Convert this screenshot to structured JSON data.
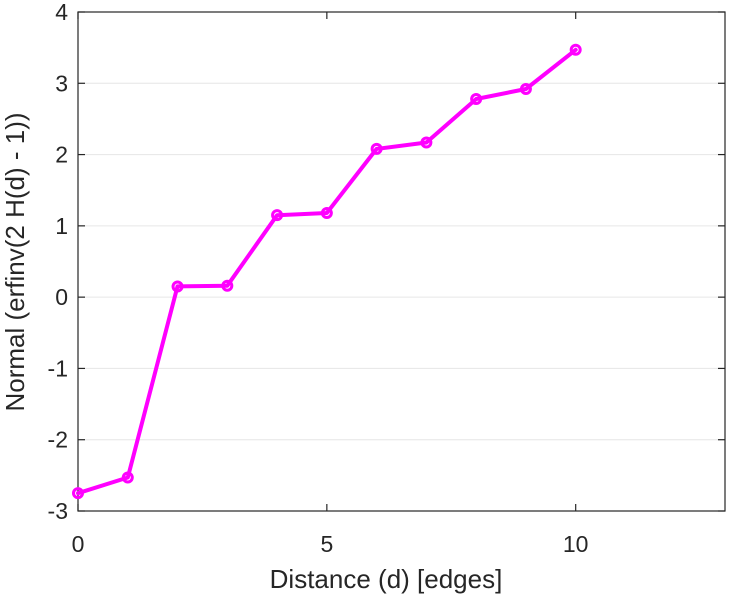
{
  "chart_data": {
    "type": "line",
    "xlabel": "Distance (d) [edges]",
    "ylabel": "Normal (erfinv(2 H(d) - 1))",
    "xlim": [
      0,
      13
    ],
    "ylim": [
      -3,
      4
    ],
    "xticks": [
      0,
      5,
      10
    ],
    "yticks": [
      -3,
      -2,
      -1,
      0,
      1,
      2,
      3,
      4
    ],
    "grid": "horizontal",
    "legend": "none",
    "series": [
      {
        "color": "#ff00ff",
        "marker": "circle",
        "x": [
          0,
          1,
          2,
          3,
          4,
          5,
          6,
          7,
          8,
          9,
          10
        ],
        "y": [
          -2.75,
          -2.53,
          0.15,
          0.16,
          1.15,
          1.18,
          2.08,
          2.17,
          2.78,
          2.92,
          3.47
        ]
      }
    ]
  }
}
